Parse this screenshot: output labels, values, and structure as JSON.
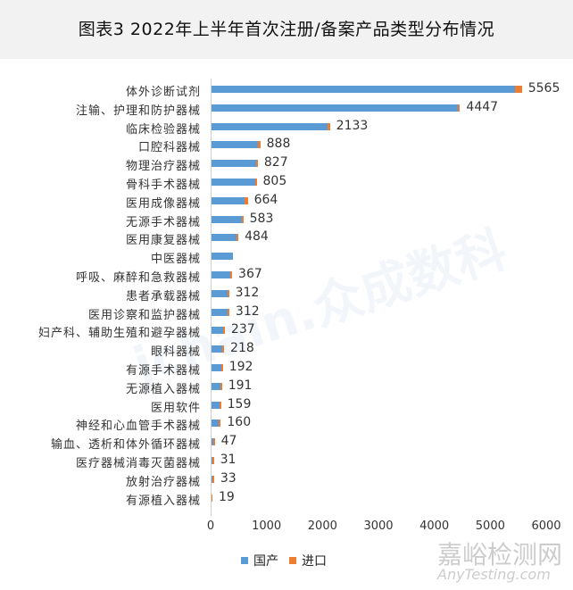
{
  "header": {
    "title": "图表3   2022年上半年首次注册/备案产品类型分布情况"
  },
  "legend": {
    "domestic": "国产",
    "import": "进口"
  },
  "watermarks": {
    "brand": "jchain.众成数科",
    "site_cn": "嘉峪检测网",
    "site_en": "AnyTesting.com"
  },
  "colors": {
    "domestic": "#5b9bd5",
    "import": "#ed7d31"
  },
  "chart_data": {
    "type": "bar",
    "orientation": "horizontal",
    "stacked": true,
    "title": "图表3 2022年上半年首次注册/备案产品类型分布情况",
    "xlabel": "",
    "ylabel": "",
    "xlim": [
      0,
      6000
    ],
    "x_ticks": [
      "0",
      "1000",
      "2000",
      "3000",
      "4000",
      "5000",
      "6000"
    ],
    "grid": false,
    "legend_position": "bottom",
    "categories": [
      "体外诊断试剂",
      "注输、护理和防护器械",
      "临床检验器械",
      "口腔科器械",
      "物理治疗器械",
      "骨科手术器械",
      "医用成像器械",
      "无源手术器械",
      "医用康复器械",
      "中医器械",
      "呼吸、麻醉和急救器械",
      "患者承载器械",
      "医用诊察和监护器械",
      "妇产科、辅助生殖和避孕器械",
      "眼科器械",
      "有源手术器械",
      "无源植入器械",
      "医用软件",
      "神经和心血管手术器械",
      "输血、透析和体外循环器械",
      "医疗器械消毒灭菌器械",
      "放射治疗器械",
      "有源植入器械"
    ],
    "totals": [
      5565,
      4447,
      2133,
      888,
      827,
      805,
      664,
      583,
      484,
      "",
      367,
      312,
      312,
      237,
      218,
      192,
      191,
      159,
      160,
      47,
      31,
      33,
      19
    ],
    "series": [
      {
        "name": "国产",
        "values": [
          5435,
          4427,
          2083,
          848,
          812,
          790,
          604,
          553,
          464,
          400,
          352,
          297,
          302,
          222,
          208,
          187,
          171,
          154,
          150,
          42,
          26,
          30,
          0
        ]
      },
      {
        "name": "进口",
        "values": [
          130,
          20,
          50,
          40,
          15,
          15,
          60,
          30,
          20,
          0,
          15,
          15,
          10,
          15,
          10,
          5,
          20,
          5,
          10,
          5,
          5,
          3,
          19
        ]
      }
    ]
  }
}
